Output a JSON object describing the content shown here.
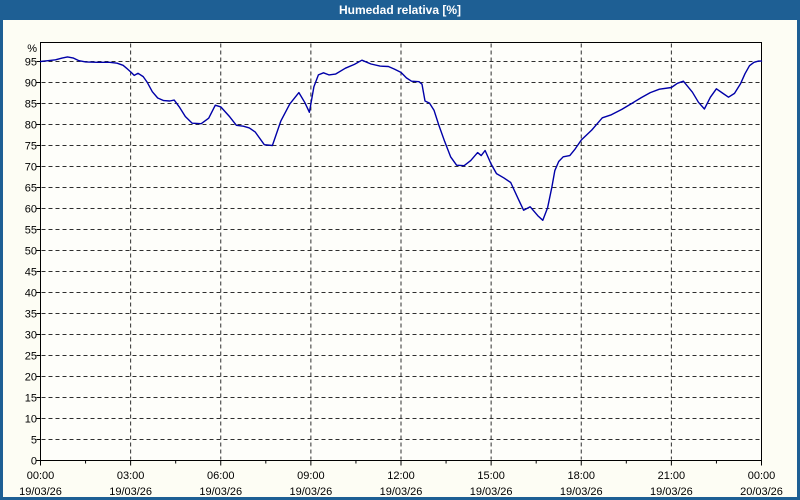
{
  "window": {
    "title": "Humedad relativa [%]"
  },
  "colors": {
    "titlebar": "#1e5f94",
    "border": "#1e5f94",
    "background": "#fdfdf4",
    "plot_background": "#fefefa",
    "grid": "#2e2e2e",
    "frame": "#000000",
    "line": "#0000a8",
    "label_text": "#000000",
    "title_text": "#ffffff"
  },
  "chart_data": {
    "type": "line",
    "title": "Humedad relativa [%]",
    "ylabel": "%",
    "ylim": [
      0,
      100
    ],
    "ytick_step": 5,
    "ytick_label_max": 95,
    "xlim_hours": [
      0,
      24
    ],
    "minor_xtick_hours": 1.5,
    "grid": "dashed",
    "legend_position": "none",
    "x_ticks": [
      {
        "hour": 0,
        "time": "00:00",
        "date": "19/03/26"
      },
      {
        "hour": 3,
        "time": "03:00",
        "date": "19/03/26"
      },
      {
        "hour": 6,
        "time": "06:00",
        "date": "19/03/26"
      },
      {
        "hour": 9,
        "time": "09:00",
        "date": "19/03/26"
      },
      {
        "hour": 12,
        "time": "12:00",
        "date": "19/03/26"
      },
      {
        "hour": 15,
        "time": "15:00",
        "date": "19/03/26"
      },
      {
        "hour": 18,
        "time": "18:00",
        "date": "19/03/26"
      },
      {
        "hour": 21,
        "time": "21:00",
        "date": "19/03/26"
      },
      {
        "hour": 24,
        "time": "00:00",
        "date": "20/03/26"
      }
    ],
    "series": [
      {
        "name": "Humedad relativa",
        "unit": "%",
        "points": [
          [
            0.0,
            95.0
          ],
          [
            0.25,
            95.2
          ],
          [
            0.5,
            95.4
          ],
          [
            0.72,
            95.8
          ],
          [
            0.9,
            96.1
          ],
          [
            1.1,
            95.8
          ],
          [
            1.28,
            95.2
          ],
          [
            1.5,
            94.9
          ],
          [
            1.9,
            94.8
          ],
          [
            2.3,
            94.8
          ],
          [
            2.55,
            94.6
          ],
          [
            2.75,
            94.1
          ],
          [
            2.9,
            93.2
          ],
          [
            3.02,
            92.4
          ],
          [
            3.12,
            91.7
          ],
          [
            3.25,
            92.2
          ],
          [
            3.42,
            91.4
          ],
          [
            3.55,
            90.1
          ],
          [
            3.72,
            87.8
          ],
          [
            3.9,
            86.3
          ],
          [
            4.1,
            85.7
          ],
          [
            4.3,
            85.6
          ],
          [
            4.45,
            85.8
          ],
          [
            4.62,
            84.2
          ],
          [
            4.82,
            81.9
          ],
          [
            5.05,
            80.3
          ],
          [
            5.35,
            80.2
          ],
          [
            5.6,
            81.5
          ],
          [
            5.82,
            84.6
          ],
          [
            6.0,
            84.2
          ],
          [
            6.3,
            81.8
          ],
          [
            6.52,
            79.8
          ],
          [
            6.75,
            79.6
          ],
          [
            6.95,
            79.2
          ],
          [
            7.15,
            78.2
          ],
          [
            7.45,
            75.2
          ],
          [
            7.72,
            75.0
          ],
          [
            8.0,
            80.8
          ],
          [
            8.3,
            84.9
          ],
          [
            8.6,
            87.6
          ],
          [
            8.8,
            85.2
          ],
          [
            8.95,
            82.9
          ],
          [
            9.1,
            89.0
          ],
          [
            9.25,
            91.8
          ],
          [
            9.42,
            92.3
          ],
          [
            9.6,
            91.8
          ],
          [
            9.82,
            92.0
          ],
          [
            10.15,
            93.4
          ],
          [
            10.45,
            94.3
          ],
          [
            10.7,
            95.3
          ],
          [
            11.0,
            94.4
          ],
          [
            11.3,
            93.9
          ],
          [
            11.58,
            93.8
          ],
          [
            11.78,
            93.2
          ],
          [
            12.0,
            92.4
          ],
          [
            12.18,
            91.1
          ],
          [
            12.35,
            90.3
          ],
          [
            12.6,
            90.2
          ],
          [
            12.7,
            89.6
          ],
          [
            12.8,
            85.6
          ],
          [
            12.95,
            85.1
          ],
          [
            13.1,
            83.4
          ],
          [
            13.25,
            80.0
          ],
          [
            13.45,
            76.0
          ],
          [
            13.65,
            72.3
          ],
          [
            13.85,
            70.3
          ],
          [
            14.1,
            70.2
          ],
          [
            14.32,
            71.4
          ],
          [
            14.55,
            73.3
          ],
          [
            14.67,
            72.6
          ],
          [
            14.8,
            73.8
          ],
          [
            15.0,
            70.6
          ],
          [
            15.18,
            68.3
          ],
          [
            15.42,
            67.3
          ],
          [
            15.65,
            66.2
          ],
          [
            15.9,
            62.3
          ],
          [
            16.08,
            59.6
          ],
          [
            16.3,
            60.4
          ],
          [
            16.55,
            58.3
          ],
          [
            16.72,
            57.2
          ],
          [
            16.88,
            60.2
          ],
          [
            17.02,
            65.0
          ],
          [
            17.12,
            69.0
          ],
          [
            17.25,
            71.2
          ],
          [
            17.4,
            72.3
          ],
          [
            17.62,
            72.6
          ],
          [
            17.8,
            74.2
          ],
          [
            18.0,
            76.3
          ],
          [
            18.35,
            78.7
          ],
          [
            18.7,
            81.6
          ],
          [
            19.0,
            82.3
          ],
          [
            19.35,
            83.6
          ],
          [
            19.7,
            85.1
          ],
          [
            20.0,
            86.4
          ],
          [
            20.3,
            87.6
          ],
          [
            20.6,
            88.4
          ],
          [
            21.0,
            88.8
          ],
          [
            21.2,
            89.8
          ],
          [
            21.4,
            90.3
          ],
          [
            21.7,
            87.7
          ],
          [
            21.9,
            85.3
          ],
          [
            22.1,
            83.7
          ],
          [
            22.3,
            86.5
          ],
          [
            22.5,
            88.5
          ],
          [
            22.7,
            87.5
          ],
          [
            22.9,
            86.5
          ],
          [
            23.1,
            87.4
          ],
          [
            23.3,
            89.7
          ],
          [
            23.45,
            92.1
          ],
          [
            23.6,
            94.0
          ],
          [
            23.75,
            94.8
          ],
          [
            23.9,
            95.1
          ],
          [
            24.0,
            95.1
          ]
        ]
      }
    ]
  }
}
